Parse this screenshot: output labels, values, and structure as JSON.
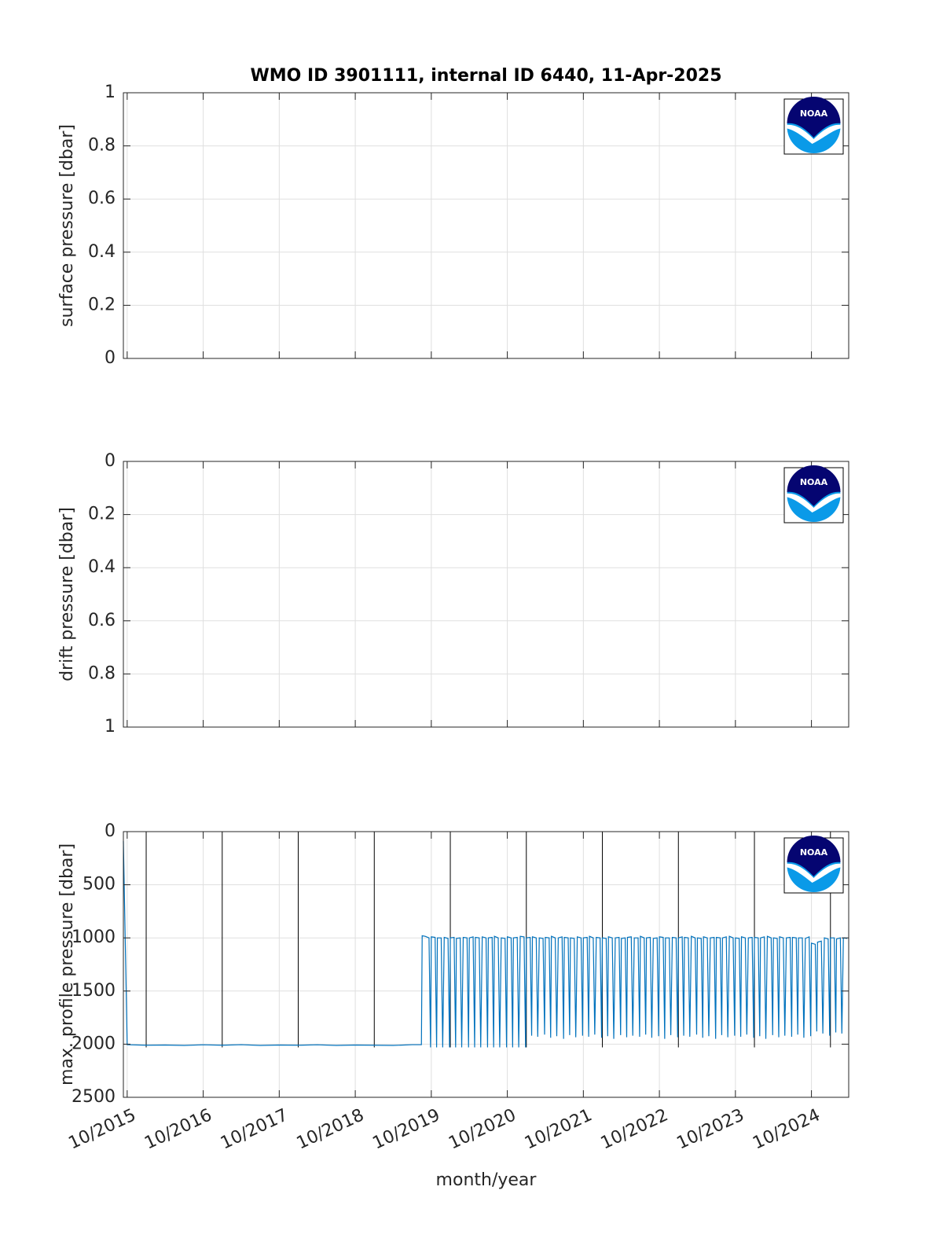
{
  "chart_data": [
    {
      "type": "empty",
      "title": "WMO ID 3901111, internal ID 6440, 11-Apr-2025",
      "ylabel": "surface pressure [dbar]",
      "logo_text": "NOAA",
      "xlim": [
        2015.7,
        2025.24
      ],
      "xticks": [
        2015.75,
        2016.75,
        2017.75,
        2018.75,
        2019.75,
        2020.75,
        2021.75,
        2022.75,
        2023.75,
        2024.75
      ],
      "ylim": [
        0,
        1
      ],
      "yticks": [
        0,
        0.2,
        0.4,
        0.6,
        0.8,
        1
      ],
      "y_reversed": false,
      "grid": true
    },
    {
      "type": "empty",
      "ylabel": "drift pressure [dbar]",
      "logo_text": "NOAA",
      "xlim": [
        2015.7,
        2025.24
      ],
      "xticks": [
        2015.75,
        2016.75,
        2017.75,
        2018.75,
        2019.75,
        2020.75,
        2021.75,
        2022.75,
        2023.75,
        2024.75
      ],
      "ylim": [
        0,
        1
      ],
      "yticks": [
        0,
        0.2,
        0.4,
        0.6,
        0.8,
        1
      ],
      "y_reversed": true,
      "grid": true
    },
    {
      "type": "line",
      "ylabel": "max. profile pressure [dbar]",
      "xlabel": "month/year",
      "logo_text": "NOAA",
      "xlim": [
        2015.7,
        2025.24
      ],
      "xticks": [
        {
          "value": 2015.75,
          "label": "10/2015"
        },
        {
          "value": 2016.75,
          "label": "10/2016"
        },
        {
          "value": 2017.75,
          "label": "10/2017"
        },
        {
          "value": 2018.75,
          "label": "10/2018"
        },
        {
          "value": 2019.75,
          "label": "10/2019"
        },
        {
          "value": 2020.75,
          "label": "10/2020"
        },
        {
          "value": 2021.75,
          "label": "10/2021"
        },
        {
          "value": 2022.75,
          "label": "10/2022"
        },
        {
          "value": 2023.75,
          "label": "10/2023"
        },
        {
          "value": 2024.75,
          "label": "10/2024"
        }
      ],
      "ylim": [
        0,
        2500
      ],
      "yticks": [
        0,
        500,
        1000,
        1500,
        2000,
        2500
      ],
      "y_reversed": true,
      "grid": true,
      "vlines": {
        "x": [
          2016,
          2017,
          2018,
          2019,
          2020,
          2021,
          2022,
          2023,
          2024,
          2025
        ],
        "ylim": [
          0,
          2030
        ],
        "color": "#000000"
      },
      "series": [
        {
          "color": "#0072bd",
          "x": [
            2015.7,
            2015.75,
            2016,
            2016.25,
            2016.5,
            2016.75,
            2017,
            2017.25,
            2017.5,
            2017.75,
            2018,
            2018.25,
            2018.5,
            2018.75,
            2019,
            2019.25,
            2019.5,
            2019.62,
            2019.63,
            2019.67,
            2019.72,
            2019.74,
            2019.75,
            2019.8,
            2019.82,
            2019.83,
            2019.88,
            2019.9,
            2019.92,
            2019.97,
            2019.99,
            2020,
            2020.05,
            2020.07,
            2020.08,
            2020.13,
            2020.15,
            2020.17,
            2020.22,
            2020.24,
            2020.25,
            2020.3,
            2020.32,
            2020.33,
            2020.38,
            2020.4,
            2020.42,
            2020.47,
            2020.49,
            2020.5,
            2020.55,
            2020.57,
            2020.58,
            2020.63,
            2020.65,
            2020.67,
            2020.72,
            2020.74,
            2020.75,
            2020.8,
            2020.82,
            2020.83,
            2020.88,
            2020.9,
            2020.92,
            2020.97,
            2020.99,
            2021,
            2021.05,
            2021.07,
            2021.08,
            2021.13,
            2021.15,
            2021.17,
            2021.22,
            2021.24,
            2021.25,
            2021.3,
            2021.32,
            2021.33,
            2021.38,
            2021.4,
            2021.42,
            2021.47,
            2021.49,
            2021.5,
            2021.55,
            2021.57,
            2021.58,
            2021.63,
            2021.65,
            2021.67,
            2021.72,
            2021.74,
            2021.75,
            2021.8,
            2021.82,
            2021.83,
            2021.88,
            2021.9,
            2021.92,
            2021.97,
            2021.99,
            2022,
            2022.05,
            2022.07,
            2022.08,
            2022.13,
            2022.15,
            2022.17,
            2022.22,
            2022.24,
            2022.25,
            2022.3,
            2022.32,
            2022.33,
            2022.38,
            2022.4,
            2022.42,
            2022.47,
            2022.49,
            2022.5,
            2022.55,
            2022.57,
            2022.58,
            2022.63,
            2022.65,
            2022.67,
            2022.72,
            2022.74,
            2022.75,
            2022.8,
            2022.82,
            2022.83,
            2022.88,
            2022.9,
            2022.92,
            2022.97,
            2022.99,
            2023,
            2023.05,
            2023.07,
            2023.08,
            2023.13,
            2023.15,
            2023.17,
            2023.22,
            2023.24,
            2023.25,
            2023.3,
            2023.32,
            2023.33,
            2023.38,
            2023.4,
            2023.42,
            2023.47,
            2023.49,
            2023.5,
            2023.55,
            2023.57,
            2023.58,
            2023.63,
            2023.65,
            2023.67,
            2023.72,
            2023.74,
            2023.75,
            2023.8,
            2023.82,
            2023.83,
            2023.88,
            2023.9,
            2023.92,
            2023.97,
            2023.99,
            2024,
            2024.05,
            2024.07,
            2024.08,
            2024.13,
            2024.15,
            2024.17,
            2024.22,
            2024.24,
            2024.25,
            2024.3,
            2024.32,
            2024.33,
            2024.38,
            2024.4,
            2024.42,
            2024.47,
            2024.49,
            2024.5,
            2024.55,
            2024.57,
            2024.58,
            2024.63,
            2024.65,
            2024.67,
            2024.72,
            2024.74,
            2024.75,
            2024.8,
            2024.82,
            2024.83,
            2024.88,
            2024.9,
            2024.92,
            2024.97,
            2024.99,
            2025,
            2025.05,
            2025.07,
            2025.08,
            2025.13,
            2025.15,
            2025.17,
            2025.22
          ],
          "values": [
            90,
            2005,
            2010,
            2008,
            2012,
            2006,
            2010,
            2005,
            2012,
            2008,
            2010,
            2006,
            2012,
            2008,
            2010,
            2012,
            2005,
            2005,
            980,
            985,
            1000,
            2030,
            990,
            995,
            2030,
            1000,
            1000,
            2030,
            995,
            1005,
            2030,
            1000,
            995,
            2030,
            1005,
            1000,
            2030,
            995,
            1000,
            2030,
            1000,
            990,
            2030,
            995,
            1000,
            2030,
            990,
            1000,
            2030,
            1000,
            995,
            2030,
            985,
            1000,
            2030,
            1000,
            1005,
            2030,
            990,
            1000,
            2030,
            1000,
            995,
            2030,
            985,
            990,
            2030,
            1000,
            995,
            1920,
            990,
            1000,
            1930,
            1000,
            1005,
            1910,
            995,
            1000,
            1940,
            985,
            1000,
            1925,
            1000,
            990,
            1950,
            995,
            1000,
            1915,
            1000,
            1005,
            1935,
            990,
            1000,
            1920,
            1000,
            995,
            1930,
            985,
            1000,
            1910,
            995,
            1000,
            1940,
            1000,
            1005,
            1925,
            990,
            1000,
            1950,
            1000,
            995,
            1915,
            1005,
            1000,
            1935,
            995,
            990,
            1920,
            1000,
            1000,
            1930,
            985,
            1000,
            1910,
            1000,
            995,
            1940,
            1005,
            1000,
            1925,
            990,
            995,
            1950,
            1000,
            1000,
            1915,
            995,
            1000,
            1935,
            1000,
            990,
            1920,
            995,
            1000,
            1930,
            985,
            1000,
            1910,
            1000,
            1005,
            1940,
            990,
            1000,
            1925,
            1000,
            995,
            1950,
            995,
            1000,
            1915,
            1000,
            990,
            1935,
            985,
            1000,
            1920,
            1000,
            1005,
            1930,
            990,
            1000,
            1910,
            1000,
            995,
            1940,
            995,
            1000,
            1925,
            1000,
            990,
            1950,
            985,
            1000,
            1915,
            1000,
            1005,
            1935,
            990,
            1000,
            1920,
            1000,
            995,
            1930,
            995,
            1000,
            1910,
            1000,
            1000,
            1940,
            1005,
            990,
            1925,
            1050,
            1060,
            1880,
            1040,
            1030,
            1900,
            1000,
            1010,
            1920,
            1000,
            1000,
            1890,
            1010,
            1000,
            1900,
            1000,
            1005
          ]
        }
      ]
    }
  ]
}
